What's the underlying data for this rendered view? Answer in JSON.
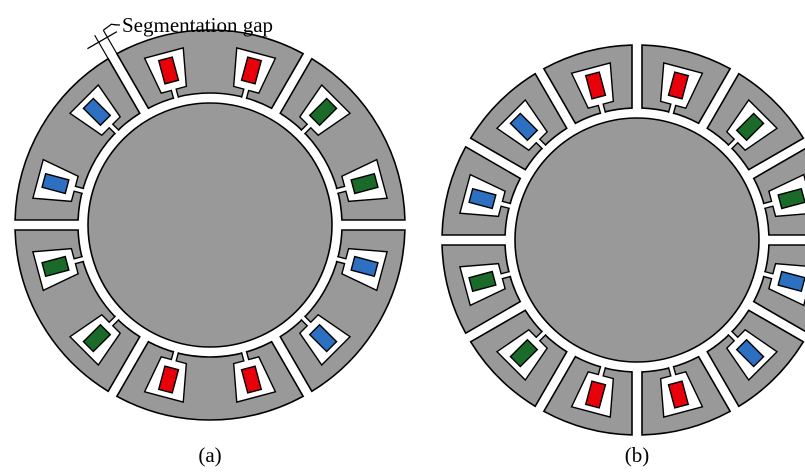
{
  "annotation": "Segmentation gap",
  "captions": {
    "a": "(a)",
    "b": "(b)"
  }
}
